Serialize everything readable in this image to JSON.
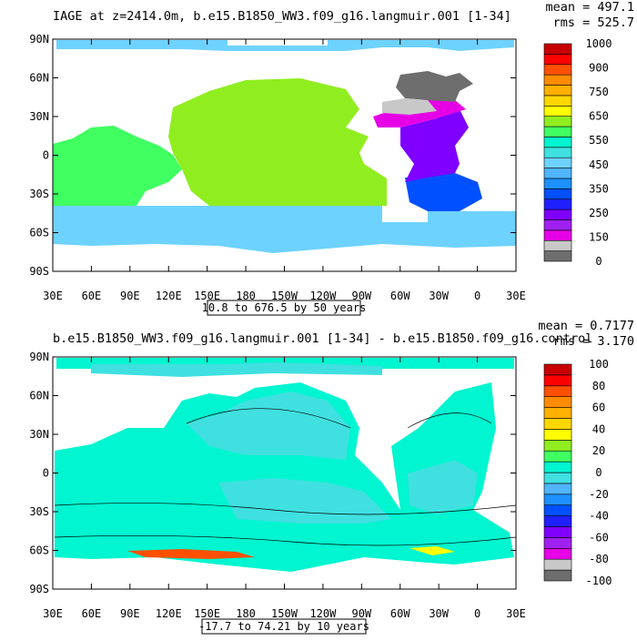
{
  "chart_data": [
    {
      "type": "heatmap",
      "title": "IAGE at z=2414.0m, b.e15.B1850_WW3.f09_g16.langmuir.001 [1-34]",
      "stats": {
        "mean": "mean = 497.1",
        "rms": "rms = 525.7"
      },
      "xticks": [
        "30E",
        "60E",
        "90E",
        "120E",
        "150E",
        "180",
        "150W",
        "120W",
        "90W",
        "60W",
        "30W",
        "0",
        "30E"
      ],
      "yticks": [
        "90N",
        "60N",
        "30N",
        "0",
        "30S",
        "60S",
        "90S"
      ],
      "range_label": "10.8 to 676.5 by 50 years",
      "units": "years",
      "levels": [
        0,
        50,
        100,
        150,
        200,
        250,
        300,
        350,
        400,
        450,
        500,
        550,
        600,
        650,
        700,
        750,
        800,
        850,
        900,
        950,
        1000
      ],
      "colorbar_labels": [
        "1000",
        "900",
        "750",
        "650",
        "550",
        "450",
        "350",
        "250",
        "150",
        "0"
      ],
      "colors": [
        "#6e6e6e",
        "#c8c8c8",
        "#e600e6",
        "#a020f0",
        "#7f00ff",
        "#2020ff",
        "#0050ff",
        "#1e90ff",
        "#50b4ff",
        "#6ed2ff",
        "#40e0e0",
        "#00f5d0",
        "#40ff60",
        "#90ee20",
        "#ffff00",
        "#ffd700",
        "#ffb000",
        "#ff8c00",
        "#ff5000",
        "#ff0000",
        "#c80000"
      ],
      "regions": {
        "pacific_ocean": 650,
        "indian_ocean": 600,
        "southern_ocean": 450,
        "arctic": 450,
        "atlantic_south": 300,
        "atlantic_tropical": 200,
        "atlantic_north": 100
      }
    },
    {
      "type": "heatmap",
      "title": "b.e15.B1850_WW3.f09_g16.langmuir.001 [1-34] - b.e15.B1850.f09_g16.control",
      "stats": {
        "mean": "mean = 0.7177",
        "rms": "rms = 3.170"
      },
      "xticks": [
        "30E",
        "60E",
        "90E",
        "120E",
        "150E",
        "180",
        "150W",
        "120W",
        "90W",
        "60W",
        "30W",
        "0",
        "30E"
      ],
      "yticks": [
        "90N",
        "60N",
        "30N",
        "0",
        "30S",
        "60S",
        "90S"
      ],
      "range_label": "-17.7 to 74.21 by 10 years",
      "units": "years",
      "levels": [
        -100,
        -90,
        -80,
        -70,
        -60,
        -50,
        -40,
        -30,
        -20,
        -10,
        0,
        10,
        20,
        30,
        40,
        50,
        60,
        70,
        80,
        90,
        100
      ],
      "colorbar_labels": [
        "100",
        "80",
        "60",
        "40",
        "20",
        "0",
        "-20",
        "-40",
        "-60",
        "-80",
        "-100"
      ],
      "colors": [
        "#6e6e6e",
        "#c8c8c8",
        "#e600e6",
        "#a020f0",
        "#7f00ff",
        "#2020ff",
        "#0050ff",
        "#1e90ff",
        "#50b4ff",
        "#40e0e0",
        "#00f5d0",
        "#40ff60",
        "#90ee20",
        "#ffff00",
        "#ffd700",
        "#ffb000",
        "#ff8c00",
        "#ff5000",
        "#ff0000",
        "#c80000"
      ],
      "regions": {
        "background": 3,
        "arctic_interior": -5,
        "north_pacific": -5,
        "south_pacific": -5,
        "south_atlantic": -5,
        "ross_sea_max": 74,
        "weddell_sea": 30
      }
    }
  ]
}
